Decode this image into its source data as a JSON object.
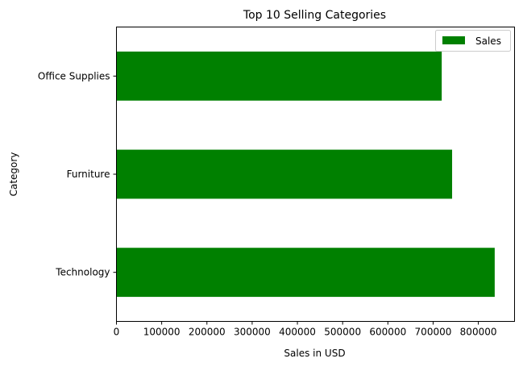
{
  "chart_data": {
    "type": "bar",
    "orientation": "horizontal",
    "title": "Top 10 Selling Categories",
    "xlabel": "Sales in USD",
    "ylabel": "Category",
    "categories": [
      "Technology",
      "Furniture",
      "Office Supplies"
    ],
    "series": [
      {
        "name": "Sales",
        "values": [
          836154,
          741999,
          719047
        ],
        "color": "#008000"
      }
    ],
    "xlim": [
      0,
      880000
    ],
    "xticks": [
      0,
      100000,
      200000,
      300000,
      400000,
      500000,
      600000,
      700000,
      800000
    ],
    "grid": false,
    "legend_position": "top-right"
  }
}
